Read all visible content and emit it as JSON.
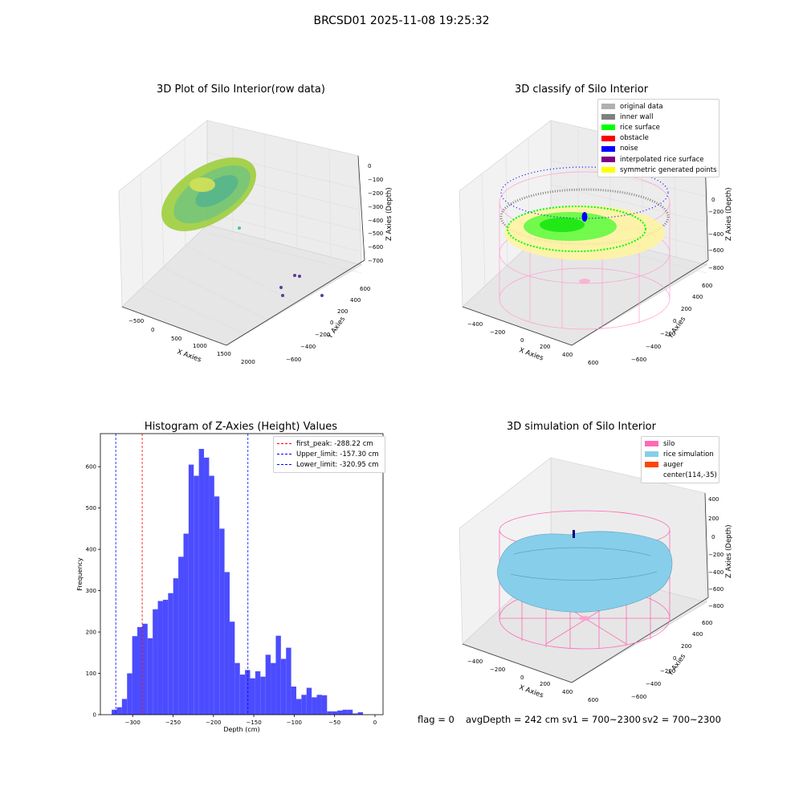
{
  "figure_title": "BRCSD01 2025-11-08 19:25:32",
  "panels": {
    "raw": {
      "title": "3D Plot of Silo Interior(row data)",
      "xlabel": "X Axies",
      "ylabel": "Y Axies",
      "zlabel": "Z Axies (Depth)",
      "xticks": [
        "−500",
        "0",
        "500",
        "1000",
        "1500",
        "2000"
      ],
      "yticks": [
        "600",
        "400",
        "200",
        "0",
        "−200",
        "−400",
        "−600"
      ],
      "zticks": [
        "0",
        "−100",
        "−200",
        "−300",
        "−400",
        "−500",
        "−600",
        "−700"
      ]
    },
    "classify": {
      "title": "3D classify of Silo Interior",
      "xlabel": "X Axies",
      "ylabel": "Y Axies",
      "zlabel": "Z Axies (Depth)",
      "xticks": [
        "−400",
        "−200",
        "0",
        "200",
        "400",
        "600"
      ],
      "yticks": [
        "600",
        "400",
        "200",
        "0",
        "−200",
        "−400",
        "−600"
      ],
      "zticks": [
        "200",
        "0",
        "−200",
        "−400",
        "−600",
        "−800"
      ],
      "legend": [
        {
          "label": "original data",
          "color": "#b0b0b0"
        },
        {
          "label": "inner wall",
          "color": "#808080"
        },
        {
          "label": "rice surface",
          "color": "#00ff00"
        },
        {
          "label": "obstacle",
          "color": "#ff0000"
        },
        {
          "label": "noise",
          "color": "#0000ff"
        },
        {
          "label": "interpolated rice surface",
          "color": "#800080"
        },
        {
          "label": "symmetric generated points",
          "color": "#ffff00"
        }
      ]
    },
    "simulation": {
      "title": "3D simulation of Silo Interior",
      "xlabel": "X Axies",
      "ylabel": "Y Axies",
      "zlabel": "Z Axies (Depth)",
      "xticks": [
        "−400",
        "−200",
        "0",
        "200",
        "400",
        "600"
      ],
      "yticks": [
        "600",
        "400",
        "200",
        "0",
        "−200",
        "−400",
        "−600"
      ],
      "zticks": [
        "400",
        "200",
        "0",
        "−200",
        "−400",
        "−600",
        "−800"
      ],
      "legend": [
        {
          "label": "silo",
          "color": "#ff69b4"
        },
        {
          "label": "rice simulation",
          "color": "#87ceeb"
        },
        {
          "label": "auger",
          "color": "#ff4500"
        },
        {
          "label": "center(114,-35)",
          "color": ""
        }
      ]
    }
  },
  "status": {
    "flag": "flag = 0",
    "avg_depth": "avgDepth = 242 cm",
    "sv1": "sv1 = 700~2300",
    "sv2": "sv2 = 700~2300"
  },
  "chart_data": [
    {
      "type": "bar",
      "title": "Histogram of Z-Axies (Height) Values",
      "xlabel": "Depth (cm)",
      "ylabel": "Frequency",
      "xlim": [
        -340,
        10
      ],
      "ylim": [
        0,
        680
      ],
      "xticks": [
        -300,
        -250,
        -200,
        -150,
        -100,
        -50,
        0
      ],
      "yticks": [
        0,
        100,
        200,
        300,
        400,
        500,
        600
      ],
      "bin_start": -326,
      "bin_width": 6.35,
      "values": [
        12,
        18,
        38,
        100,
        190,
        212,
        220,
        185,
        255,
        275,
        278,
        294,
        330,
        382,
        438,
        605,
        578,
        643,
        622,
        578,
        528,
        450,
        345,
        225,
        125,
        97,
        108,
        88,
        105,
        92,
        145,
        125,
        191,
        135,
        162,
        68,
        38,
        48,
        65,
        42,
        48,
        47,
        8,
        8,
        10,
        12,
        12,
        3,
        6
      ],
      "lines": [
        {
          "label": "first_peak: -288.22 cm",
          "value": -288.22,
          "color": "#ff0000"
        },
        {
          "label": "Upper_limit: -157.30 cm",
          "value": -157.3,
          "color": "#0000ff"
        },
        {
          "label": "Lower_limit: -320.95 cm",
          "value": -320.95,
          "color": "#0000ff"
        }
      ],
      "bar_color": "#4c4cff"
    }
  ]
}
